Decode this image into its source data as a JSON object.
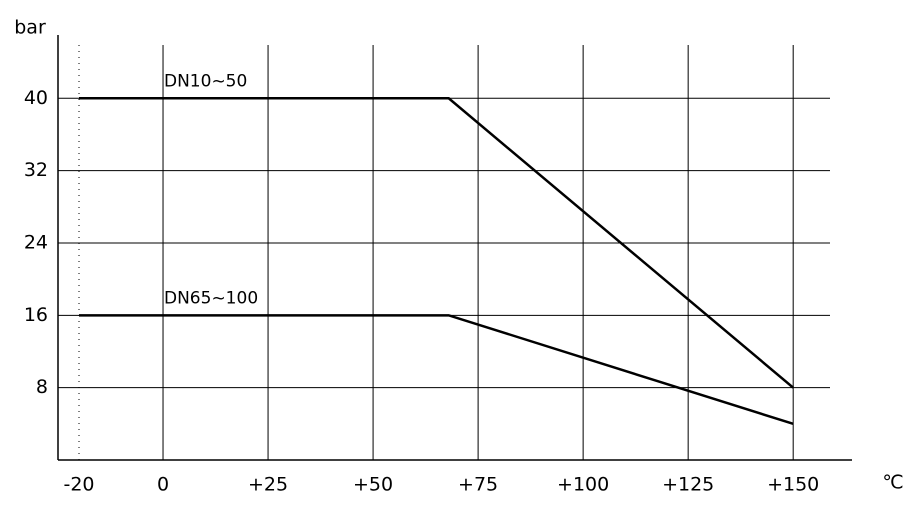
{
  "chart_data": {
    "type": "line",
    "y_label": "bar",
    "x_label": "℃",
    "series": [
      {
        "name": "DN10~50",
        "color": "#000000",
        "x": [
          -20,
          68,
          150
        ],
        "values": [
          40,
          40,
          8
        ]
      },
      {
        "name": "DN65~100",
        "color": "#000000",
        "x": [
          -20,
          68,
          150
        ],
        "values": [
          16,
          16,
          4
        ]
      }
    ],
    "xlim": [
      -25,
      164
    ],
    "ylim": [
      0,
      47
    ],
    "xticks": [
      -20,
      0,
      {
        "value": 25,
        "label": "+25"
      },
      {
        "value": 50,
        "label": "+50"
      },
      {
        "value": 75,
        "label": "+75"
      },
      {
        "value": 100,
        "label": "+100"
      },
      {
        "value": 125,
        "label": "+125"
      },
      {
        "value": 150,
        "label": "+150"
      }
    ],
    "yticks": [
      8,
      16,
      24,
      32,
      40
    ],
    "grid": true
  }
}
